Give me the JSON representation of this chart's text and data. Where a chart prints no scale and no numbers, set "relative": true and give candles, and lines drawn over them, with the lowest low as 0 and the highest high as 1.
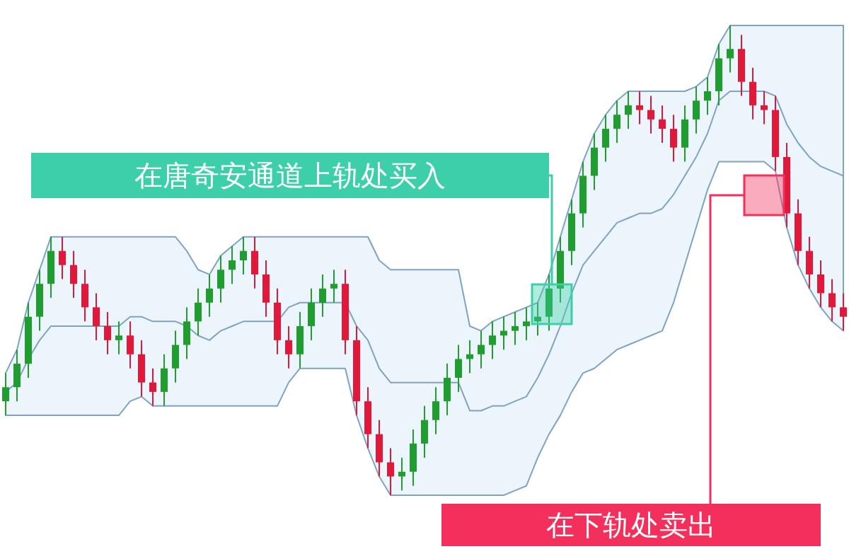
{
  "chart_data": {
    "type": "candlestick",
    "relative": true,
    "categories": [
      null,
      null,
      null,
      null,
      null,
      null,
      null,
      null,
      null,
      null,
      null,
      null,
      null,
      null,
      null,
      null,
      null,
      null,
      null,
      null,
      null,
      null,
      null,
      null,
      null,
      null,
      null,
      null,
      null,
      null,
      null,
      null,
      null,
      null,
      null,
      null,
      null,
      null,
      null,
      null,
      null,
      null,
      null,
      null,
      null,
      null,
      null,
      null,
      null,
      null,
      null,
      null,
      null,
      null,
      null,
      null,
      null,
      null,
      null,
      null,
      null,
      null,
      null,
      null,
      null,
      null,
      null,
      null,
      null,
      null,
      null,
      null,
      null,
      null,
      null
    ],
    "ohlc": [
      [
        0.2,
        0.26,
        0.17,
        0.23
      ],
      [
        0.23,
        0.31,
        0.2,
        0.28
      ],
      [
        0.28,
        0.41,
        0.25,
        0.38
      ],
      [
        0.38,
        0.48,
        0.35,
        0.45
      ],
      [
        0.45,
        0.55,
        0.42,
        0.52
      ],
      [
        0.52,
        0.55,
        0.46,
        0.49
      ],
      [
        0.49,
        0.52,
        0.42,
        0.45
      ],
      [
        0.45,
        0.48,
        0.37,
        0.4
      ],
      [
        0.4,
        0.43,
        0.33,
        0.36
      ],
      [
        0.36,
        0.39,
        0.3,
        0.33
      ],
      [
        0.33,
        0.37,
        0.3,
        0.34
      ],
      [
        0.34,
        0.37,
        0.27,
        0.3
      ],
      [
        0.3,
        0.33,
        0.21,
        0.24
      ],
      [
        0.24,
        0.27,
        0.19,
        0.22
      ],
      [
        0.22,
        0.3,
        0.19,
        0.27
      ],
      [
        0.27,
        0.35,
        0.24,
        0.32
      ],
      [
        0.32,
        0.4,
        0.29,
        0.37
      ],
      [
        0.37,
        0.44,
        0.34,
        0.41
      ],
      [
        0.41,
        0.47,
        0.38,
        0.44
      ],
      [
        0.44,
        0.51,
        0.41,
        0.48
      ],
      [
        0.48,
        0.53,
        0.45,
        0.5
      ],
      [
        0.5,
        0.55,
        0.47,
        0.52
      ],
      [
        0.52,
        0.55,
        0.44,
        0.47
      ],
      [
        0.47,
        0.5,
        0.38,
        0.41
      ],
      [
        0.41,
        0.44,
        0.3,
        0.33
      ],
      [
        0.33,
        0.36,
        0.27,
        0.3
      ],
      [
        0.3,
        0.39,
        0.27,
        0.36
      ],
      [
        0.36,
        0.44,
        0.33,
        0.41
      ],
      [
        0.41,
        0.47,
        0.38,
        0.44
      ],
      [
        0.44,
        0.48,
        0.41,
        0.45
      ],
      [
        0.45,
        0.48,
        0.3,
        0.33
      ],
      [
        0.33,
        0.36,
        0.17,
        0.2
      ],
      [
        0.2,
        0.23,
        0.1,
        0.13
      ],
      [
        0.13,
        0.16,
        0.04,
        0.07
      ],
      [
        0.07,
        0.1,
        0.0,
        0.04
      ],
      [
        0.04,
        0.08,
        0.01,
        0.05
      ],
      [
        0.05,
        0.14,
        0.02,
        0.11
      ],
      [
        0.11,
        0.19,
        0.08,
        0.16
      ],
      [
        0.16,
        0.23,
        0.13,
        0.2
      ],
      [
        0.2,
        0.28,
        0.17,
        0.25
      ],
      [
        0.25,
        0.32,
        0.22,
        0.29
      ],
      [
        0.29,
        0.33,
        0.26,
        0.3
      ],
      [
        0.3,
        0.35,
        0.27,
        0.32
      ],
      [
        0.32,
        0.37,
        0.29,
        0.34
      ],
      [
        0.34,
        0.38,
        0.31,
        0.35
      ],
      [
        0.35,
        0.39,
        0.32,
        0.36
      ],
      [
        0.36,
        0.4,
        0.33,
        0.37
      ],
      [
        0.37,
        0.41,
        0.34,
        0.38
      ],
      [
        0.38,
        0.47,
        0.35,
        0.44
      ],
      [
        0.44,
        0.55,
        0.41,
        0.52
      ],
      [
        0.52,
        0.63,
        0.49,
        0.6
      ],
      [
        0.6,
        0.71,
        0.57,
        0.68
      ],
      [
        0.68,
        0.77,
        0.65,
        0.74
      ],
      [
        0.74,
        0.81,
        0.71,
        0.78
      ],
      [
        0.78,
        0.84,
        0.75,
        0.81
      ],
      [
        0.81,
        0.86,
        0.78,
        0.83
      ],
      [
        0.83,
        0.86,
        0.79,
        0.82
      ],
      [
        0.82,
        0.85,
        0.77,
        0.8
      ],
      [
        0.8,
        0.83,
        0.75,
        0.78
      ],
      [
        0.78,
        0.81,
        0.71,
        0.74
      ],
      [
        0.74,
        0.83,
        0.71,
        0.8
      ],
      [
        0.8,
        0.87,
        0.77,
        0.84
      ],
      [
        0.84,
        0.89,
        0.81,
        0.86
      ],
      [
        0.86,
        0.96,
        0.83,
        0.93
      ],
      [
        0.93,
        1.0,
        0.9,
        0.95
      ],
      [
        0.95,
        0.98,
        0.85,
        0.88
      ],
      [
        0.88,
        0.91,
        0.8,
        0.83
      ],
      [
        0.83,
        0.86,
        0.79,
        0.82
      ],
      [
        0.82,
        0.85,
        0.69,
        0.72
      ],
      [
        0.72,
        0.75,
        0.57,
        0.6
      ],
      [
        0.6,
        0.63,
        0.49,
        0.52
      ],
      [
        0.52,
        0.55,
        0.44,
        0.47
      ],
      [
        0.47,
        0.5,
        0.4,
        0.43
      ],
      [
        0.43,
        0.46,
        0.37,
        0.4
      ],
      [
        0.4,
        0.43,
        0.35,
        0.38
      ]
    ],
    "series": [
      {
        "type": "line",
        "color": "#7fa3c4",
        "values": [
          0.22,
          0.24,
          0.29,
          0.33,
          0.36,
          0.36,
          0.36,
          0.36,
          0.36,
          0.36,
          0.36,
          0.38,
          0.38,
          0.37,
          0.37,
          0.37,
          0.36,
          0.34,
          0.33,
          0.35,
          0.36,
          0.37,
          0.37,
          0.37,
          0.37,
          0.4,
          0.41,
          0.41,
          0.41,
          0.41,
          0.41,
          0.36,
          0.33,
          0.27,
          0.24,
          0.24,
          0.24,
          0.24,
          0.24,
          0.24,
          0.24,
          0.18,
          0.18,
          0.19,
          0.19,
          0.2,
          0.21,
          0.25,
          0.3,
          0.36,
          0.43,
          0.49,
          0.52,
          0.55,
          0.58,
          0.59,
          0.6,
          0.6,
          0.61,
          0.64,
          0.68,
          0.72,
          0.77,
          0.84,
          0.86,
          0.86,
          0.86,
          0.86,
          0.85,
          0.79,
          0.75,
          0.72,
          0.7,
          0.69,
          0.68
        ],
        "upper": [
          0.26,
          0.31,
          0.41,
          0.48,
          0.55,
          0.55,
          0.55,
          0.55,
          0.55,
          0.55,
          0.55,
          0.55,
          0.55,
          0.55,
          0.55,
          0.55,
          0.52,
          0.48,
          0.47,
          0.51,
          0.53,
          0.55,
          0.55,
          0.55,
          0.55,
          0.55,
          0.55,
          0.55,
          0.55,
          0.55,
          0.55,
          0.55,
          0.55,
          0.5,
          0.48,
          0.48,
          0.48,
          0.48,
          0.48,
          0.48,
          0.48,
          0.36,
          0.35,
          0.37,
          0.38,
          0.39,
          0.4,
          0.41,
          0.47,
          0.55,
          0.63,
          0.71,
          0.77,
          0.81,
          0.84,
          0.86,
          0.86,
          0.86,
          0.86,
          0.86,
          0.86,
          0.87,
          0.89,
          0.96,
          1.0,
          1.0,
          1.0,
          1.0,
          1.0,
          1.0,
          1.0,
          1.0,
          1.0,
          1.0,
          1.0
        ],
        "lower": [
          0.17,
          0.17,
          0.17,
          0.17,
          0.17,
          0.17,
          0.17,
          0.17,
          0.17,
          0.17,
          0.17,
          0.2,
          0.21,
          0.19,
          0.19,
          0.19,
          0.19,
          0.19,
          0.19,
          0.19,
          0.19,
          0.19,
          0.19,
          0.19,
          0.19,
          0.24,
          0.27,
          0.27,
          0.27,
          0.27,
          0.27,
          0.17,
          0.1,
          0.04,
          0.0,
          0.0,
          0.0,
          0.0,
          0.0,
          0.0,
          0.0,
          0.0,
          0.0,
          0.0,
          0.0,
          0.01,
          0.02,
          0.08,
          0.13,
          0.17,
          0.22,
          0.26,
          0.27,
          0.29,
          0.31,
          0.32,
          0.33,
          0.34,
          0.35,
          0.41,
          0.49,
          0.57,
          0.65,
          0.71,
          0.71,
          0.71,
          0.71,
          0.71,
          0.69,
          0.57,
          0.49,
          0.44,
          0.4,
          0.37,
          0.35
        ]
      }
    ],
    "annotations": [
      "在唐奇安通道上轨处买入",
      "在下轨处卖出"
    ]
  }
}
